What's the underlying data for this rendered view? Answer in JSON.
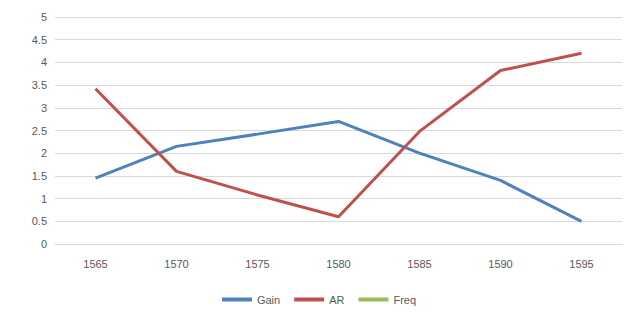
{
  "chart_data": {
    "type": "line",
    "categories": [
      "1565",
      "1570",
      "1575",
      "1580",
      "1585",
      "1590",
      "1595"
    ],
    "series": [
      {
        "name": "Gain",
        "color": "#4f81bd",
        "values": [
          1.45,
          2.15,
          2.42,
          2.7,
          2.0,
          1.4,
          0.5
        ]
      },
      {
        "name": "AR",
        "color": "#c0504d",
        "values": [
          3.42,
          1.6,
          1.08,
          0.6,
          2.48,
          3.82,
          4.2
        ]
      },
      {
        "name": "Freq",
        "color": "#9bbb59",
        "values": [
          null,
          null,
          null,
          null,
          null,
          null,
          null
        ]
      }
    ],
    "ylim": [
      0,
      5
    ],
    "yticks": [
      0,
      0.5,
      1,
      1.5,
      2,
      2.5,
      3,
      3.5,
      4,
      4.5,
      5
    ],
    "grid": true,
    "legend": "bottom"
  }
}
